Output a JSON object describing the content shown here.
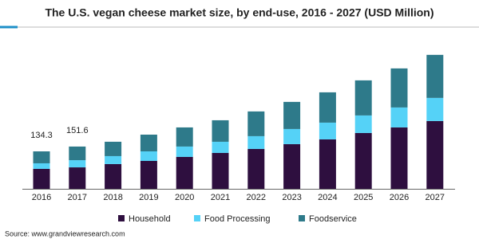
{
  "chart_data": {
    "type": "stacked-bar",
    "title": "The U.S. vegan cheese market size, by end-use, 2016 - 2027 (USD Million)",
    "categories": [
      "2016",
      "2017",
      "2018",
      "2019",
      "2020",
      "2021",
      "2022",
      "2023",
      "2024",
      "2025",
      "2026",
      "2027"
    ],
    "series": [
      {
        "name": "Household",
        "color": "#2e0f3f",
        "values": [
          71.5,
          77,
          88.7,
          100,
          114.4,
          128.7,
          143,
          160.2,
          177.3,
          200.2,
          220.2,
          243.1
        ]
      },
      {
        "name": "Food Processing",
        "color": "#55d2f7",
        "values": [
          20,
          25.7,
          28.6,
          34.3,
          37.2,
          40,
          45.8,
          54.3,
          60,
          62.9,
          71.5,
          82.9
        ]
      },
      {
        "name": "Foodservice",
        "color": "#2e7a8a",
        "values": [
          42.8,
          48.9,
          51.5,
          60,
          68.6,
          77.2,
          88.7,
          97.2,
          108.7,
          125.8,
          140.1,
          154.4
        ]
      }
    ],
    "totals": [
      134.3,
      151.6,
      null,
      null,
      null,
      null,
      null,
      null,
      null,
      null,
      null,
      null
    ],
    "legend": "bottom",
    "source": "Source: www.grandviewresearch.com"
  }
}
